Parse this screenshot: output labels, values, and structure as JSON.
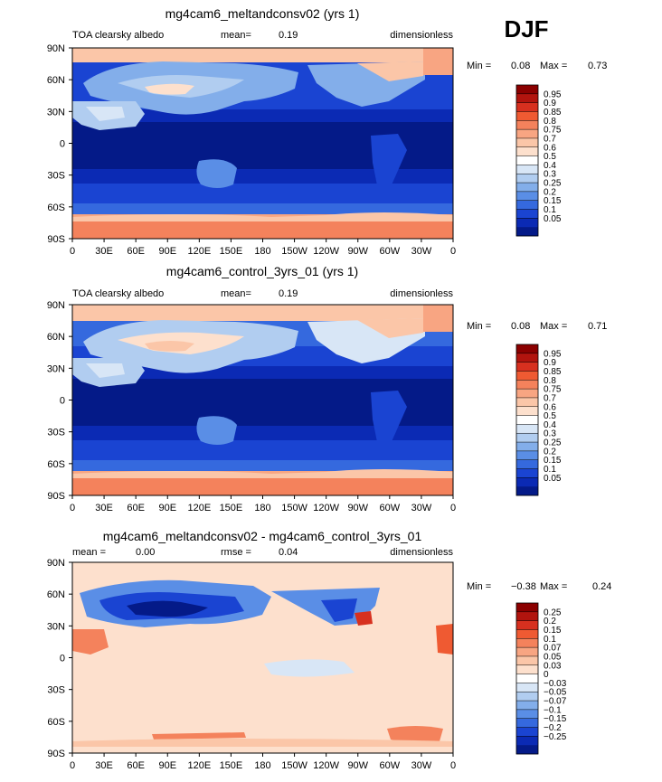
{
  "season": "DJF",
  "x_ticks": [
    "0",
    "30E",
    "60E",
    "90E",
    "120E",
    "150E",
    "180",
    "150W",
    "120W",
    "90W",
    "60W",
    "30W",
    "0"
  ],
  "y_ticks": [
    "90N",
    "60N",
    "30N",
    "0",
    "30S",
    "60S",
    "90S"
  ],
  "panels": [
    {
      "title": "mg4cam6_meltandconsv02 (yrs 1)",
      "left": "TOA clearsky albedo",
      "mean_label": "mean=",
      "mean_value": "0.19",
      "right": "dimensionless",
      "min_label": "Min =",
      "min_value": "0.08",
      "max_label": "Max =",
      "max_value": "0.73",
      "colorbar_labels": [
        "0.95",
        "0.9",
        "0.85",
        "0.8",
        "0.75",
        "0.7",
        "0.6",
        "0.5",
        "0.4",
        "0.3",
        "0.25",
        "0.2",
        "0.15",
        "0.1",
        "0.05"
      ],
      "colorbar_colors": [
        "#8b0000",
        "#b2140e",
        "#d7301f",
        "#ef5a32",
        "#f4825c",
        "#f8a582",
        "#fbc6a8",
        "#fde0cd",
        "#ffffff",
        "#d8e6f6",
        "#b1cdf0",
        "#83aeea",
        "#5a8ee6",
        "#3569de",
        "#1a44d2",
        "#0b2ab4",
        "#041a88"
      ]
    },
    {
      "title": "mg4cam6_control_3yrs_01 (yrs 1)",
      "left": "TOA clearsky albedo",
      "mean_label": "mean=",
      "mean_value": "0.19",
      "right": "dimensionless",
      "min_label": "Min =",
      "min_value": "0.08",
      "max_label": "Max =",
      "max_value": "0.71",
      "colorbar_labels": [
        "0.95",
        "0.9",
        "0.85",
        "0.8",
        "0.75",
        "0.7",
        "0.6",
        "0.5",
        "0.4",
        "0.3",
        "0.25",
        "0.2",
        "0.15",
        "0.1",
        "0.05"
      ],
      "colorbar_colors": [
        "#8b0000",
        "#b2140e",
        "#d7301f",
        "#ef5a32",
        "#f4825c",
        "#f8a582",
        "#fbc6a8",
        "#fde0cd",
        "#ffffff",
        "#d8e6f6",
        "#b1cdf0",
        "#83aeea",
        "#5a8ee6",
        "#3569de",
        "#1a44d2",
        "#0b2ab4",
        "#041a88"
      ]
    },
    {
      "title": "mg4cam6_meltandconsv02 - mg4cam6_control_3yrs_01",
      "left_label": "mean =",
      "left_value": "0.00",
      "mid_label": "rmse =",
      "mid_value": "0.04",
      "right": "dimensionless",
      "min_label": "Min =",
      "min_value": "−0.38",
      "max_label": "Max =",
      "max_value": "0.24",
      "colorbar_labels": [
        "0.25",
        "0.2",
        "0.15",
        "0.1",
        "0.07",
        "0.05",
        "0.03",
        "0",
        "−0.03",
        "−0.05",
        "−0.07",
        "−0.1",
        "−0.15",
        "−0.2",
        "−0.25"
      ],
      "colorbar_colors": [
        "#8b0000",
        "#b2140e",
        "#d7301f",
        "#ef5a32",
        "#f4825c",
        "#f8a582",
        "#fbc6a8",
        "#fde0cd",
        "#ffffff",
        "#d8e6f6",
        "#b1cdf0",
        "#83aeea",
        "#5a8ee6",
        "#3569de",
        "#1a44d2",
        "#0b2ab4",
        "#041a88"
      ]
    }
  ],
  "chart_data": [
    {
      "type": "heatmap",
      "title": "mg4cam6_meltandconsv02 (yrs 1)",
      "field": "TOA clearsky albedo",
      "units": "dimensionless",
      "mean": 0.19,
      "min": 0.08,
      "max": 0.73,
      "xlim": [
        0,
        360
      ],
      "ylim": [
        -90,
        90
      ],
      "levels": [
        0.05,
        0.1,
        0.15,
        0.2,
        0.25,
        0.3,
        0.4,
        0.5,
        0.6,
        0.7,
        0.75,
        0.8,
        0.85,
        0.9,
        0.95
      ]
    },
    {
      "type": "heatmap",
      "title": "mg4cam6_control_3yrs_01 (yrs 1)",
      "field": "TOA clearsky albedo",
      "units": "dimensionless",
      "mean": 0.19,
      "min": 0.08,
      "max": 0.71,
      "xlim": [
        0,
        360
      ],
      "ylim": [
        -90,
        90
      ],
      "levels": [
        0.05,
        0.1,
        0.15,
        0.2,
        0.25,
        0.3,
        0.4,
        0.5,
        0.6,
        0.7,
        0.75,
        0.8,
        0.85,
        0.9,
        0.95
      ]
    },
    {
      "type": "heatmap",
      "title": "mg4cam6_meltandconsv02 - mg4cam6_control_3yrs_01",
      "units": "dimensionless",
      "mean": 0.0,
      "rmse": 0.04,
      "min": -0.38,
      "max": 0.24,
      "xlim": [
        0,
        360
      ],
      "ylim": [
        -90,
        90
      ],
      "levels": [
        -0.25,
        -0.2,
        -0.15,
        -0.1,
        -0.07,
        -0.05,
        -0.03,
        0,
        0.03,
        0.05,
        0.07,
        0.1,
        0.15,
        0.2,
        0.25
      ]
    }
  ]
}
